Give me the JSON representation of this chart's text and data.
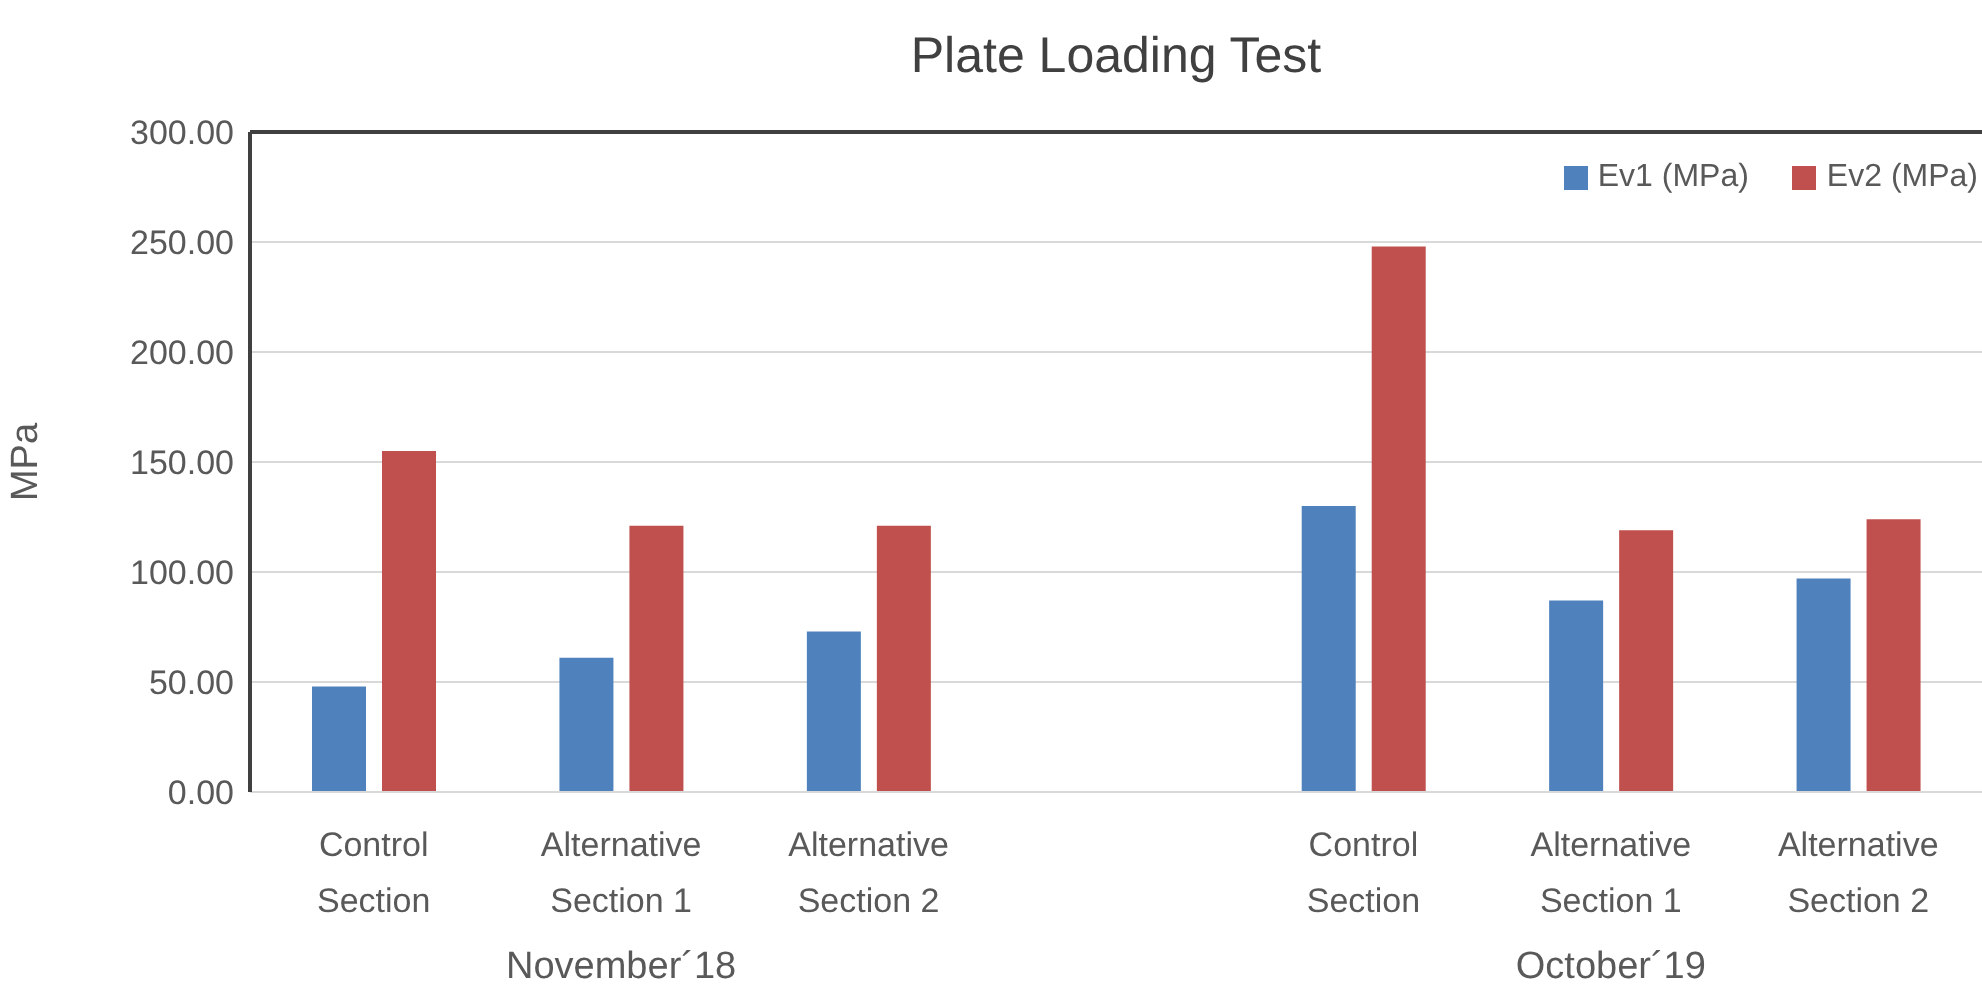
{
  "chart_data": {
    "type": "bar",
    "title": "Plate Loading Test",
    "ylabel": "MPa",
    "categories": [
      "Control Section",
      "Alternative Section 1",
      "Alternative Section 2",
      null,
      "Control Section",
      "Alternative Section 1",
      "Alternative Section 2"
    ],
    "annotations": [
      "November´18",
      "October´19"
    ],
    "series": [
      {
        "name": "Ev1 (MPa)",
        "color": "#4f81bd",
        "values": [
          48,
          61,
          73,
          null,
          130,
          87,
          97
        ]
      },
      {
        "name": "Ev2 (MPa)",
        "color": "#c0504d",
        "values": [
          155,
          121,
          121,
          null,
          248,
          119,
          124
        ]
      }
    ],
    "ylim": [
      0,
      300
    ],
    "yticks": [
      {
        "value": 0,
        "label": "0.00"
      },
      {
        "value": 50,
        "label": "50.00"
      },
      {
        "value": 100,
        "label": "100.00"
      },
      {
        "value": 150,
        "label": "150.00"
      },
      {
        "value": 200,
        "label": "200.00"
      },
      {
        "value": 250,
        "label": "250.00"
      },
      {
        "value": 300,
        "label": "300.00"
      }
    ],
    "grid": "y",
    "legend": "top right"
  }
}
